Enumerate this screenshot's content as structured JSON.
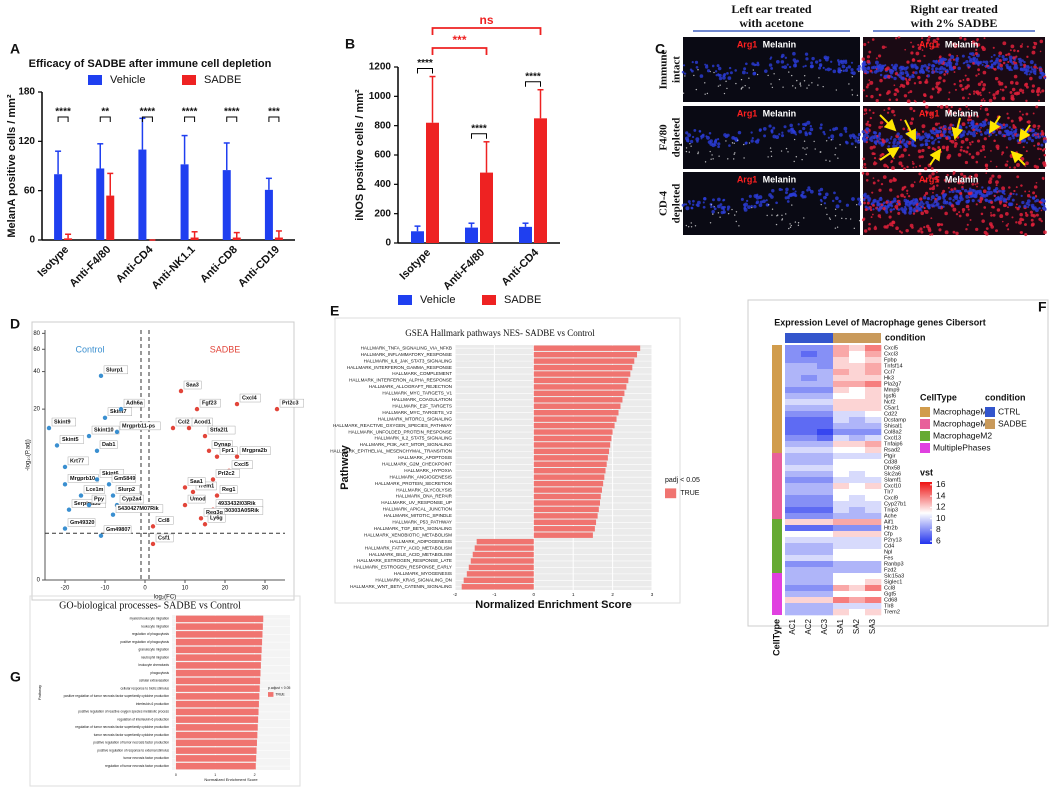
{
  "panel_labels": [
    "A",
    "B",
    "C",
    "D",
    "E",
    "F",
    "G"
  ],
  "micrograph": {
    "columns": [
      [
        "Left ear treated",
        "with acetone"
      ],
      [
        "Right ear treated",
        "with 2% SADBE"
      ]
    ],
    "rows": [
      [
        "Immune",
        "intact"
      ],
      [
        "F4/80",
        "depleted"
      ],
      [
        "CD-4",
        "depleted"
      ]
    ],
    "stains": [
      "Arg1",
      "Melanin"
    ]
  },
  "chart_data": [
    {
      "type": "bar",
      "title": "Efficacy of SADBE after immune cell depletion",
      "y_label": "MelanA positive cells / mm²",
      "categories": [
        "Isotype",
        "Anti-F4/80",
        "Anti-CD4",
        "Anti-NK1.1",
        "Anti-CD8",
        "Anti-CD19"
      ],
      "series": [
        {
          "name": "Vehicle",
          "color": "#1f3ff0",
          "values": [
            80,
            87,
            110,
            92,
            85,
            61
          ],
          "errors": [
            28,
            30,
            38,
            35,
            33,
            14
          ]
        },
        {
          "name": "SADBE",
          "color": "#ee2222",
          "values": [
            2,
            54,
            0,
            3,
            3,
            3
          ],
          "errors": [
            5,
            27,
            0,
            7,
            6,
            8
          ]
        }
      ],
      "ylim": [
        0,
        180
      ],
      "yticks": [
        0,
        60,
        120,
        180
      ],
      "significance": [
        "****",
        "**",
        "****",
        "****",
        "****",
        "***"
      ]
    },
    {
      "type": "bar",
      "y_label": "iNOS positive cells / mm²",
      "categories": [
        "Isotype",
        "Anti-F4/80",
        "Anti-CD4"
      ],
      "series": [
        {
          "name": "Vehicle",
          "color": "#1f3ff0",
          "values": [
            80,
            105,
            110
          ],
          "errors": [
            35,
            30,
            25
          ]
        },
        {
          "name": "SADBE",
          "color": "#ee2222",
          "values": [
            820,
            480,
            850
          ],
          "errors": [
            315,
            210,
            195
          ]
        }
      ],
      "ylim": [
        0,
        1200
      ],
      "yticks": [
        0,
        200,
        400,
        600,
        800,
        1000,
        1200
      ],
      "significance": [
        "****",
        "****",
        "****"
      ],
      "comparisons": [
        {
          "label": "***",
          "pair": [
            "Isotype",
            "Anti-F4/80"
          ]
        },
        {
          "label": "ns",
          "pair": [
            "Isotype",
            "Anti-CD4"
          ]
        }
      ],
      "comparison_color": "#ee2222"
    },
    {
      "type": "scatter",
      "x_label": "log₂(FC)",
      "y_label": "-log₁₀(P.adj)",
      "xlim": [
        -25,
        35
      ],
      "xticks": [
        -20,
        -10,
        0,
        10,
        20,
        30
      ],
      "ylim": [
        0,
        85
      ],
      "yticks": [
        0,
        20,
        40,
        60,
        80
      ],
      "yscale": "log1p",
      "thresholds": {
        "x": [
          -1,
          1
        ],
        "y": 1.3
      },
      "series": [
        {
          "name": "Control",
          "color": "#3a8fd0",
          "labels": [
            "Slurp1",
            "Skint9",
            "Skint5",
            "Skint10",
            "Skint7",
            "Krt77",
            "Mrgprb10",
            "Lce1m",
            "Serpina3b",
            "Gm49320",
            "Adh6a",
            "Mrgprb11-ps",
            "Dab1",
            "Skint6",
            "Gm5849",
            "Slurp2",
            "Ppy",
            "Cyp2a4",
            "5430427M07Rik",
            "Gm49807"
          ],
          "x": [
            -11,
            -24,
            -22,
            -14,
            -10,
            -20,
            -20,
            -16,
            -19,
            -20,
            -6,
            -7,
            -12,
            -12,
            -9,
            -8,
            -14,
            -7,
            -8,
            -11
          ],
          "values": [
            37,
            14,
            10,
            12,
            17,
            6.5,
            4.5,
            3.5,
            2.5,
            1.5,
            20,
            13,
            9,
            5,
            4.5,
            3.5,
            2.8,
            2.8,
            2.2,
            1.2
          ]
        },
        {
          "name": "SADBE",
          "color": "#e2453a",
          "labels": [
            "Saa3",
            "Fgf23",
            "Cxcl4",
            "Prl2c3",
            "Ccl2",
            "Acod1",
            "Stfa2l1",
            "Dynap",
            "Fpr1",
            "Mrgpra2b",
            "Cxcl5",
            "Prl2c2",
            "Trem1",
            "Saa1",
            "Reg1",
            "Umod",
            "4933432I03Rik",
            "B230303A05Rik",
            "Reg3g",
            "Ly6g",
            "Ccl8",
            "Csf1"
          ],
          "x": [
            9,
            13,
            23,
            33,
            7,
            11,
            15,
            16,
            18,
            23,
            21,
            17,
            12,
            10,
            18,
            10,
            17,
            17,
            14,
            15,
            2,
            2
          ],
          "values": [
            28,
            20,
            22,
            20,
            14,
            14,
            12,
            9,
            8,
            8,
            6,
            5,
            3.8,
            4.2,
            3.5,
            2.8,
            2.5,
            2.1,
            2.0,
            1.7,
            1.6,
            0.9
          ]
        }
      ]
    },
    {
      "type": "hbar",
      "title": "GSEA Hallmark pathways NES- SADBE vs Control",
      "x_label": "Normalized Enrichment Score",
      "y_label": "Pathway",
      "categories": [
        "HALLMARK_TNFA_SIGNALING_VIA_NFKB",
        "HALLMARK_INFLAMMATORY_RESPONSE",
        "HALLMARK_IL6_JAK_STAT3_SIGNALING",
        "HALLMARK_INTERFERON_GAMMA_RESPONSE",
        "HALLMARK_COMPLEMENT",
        "HALLMARK_INTERFERON_ALPHA_RESPONSE",
        "HALLMARK_ALLOGRAFT_REJECTION",
        "HALLMARK_MYC_TARGETS_V1",
        "HALLMARK_COAGULATION",
        "HALLMARK_E2F_TARGETS",
        "HALLMARK_MYC_TARGETS_V2",
        "HALLMARK_MTORC1_SIGNALING",
        "HALLMARK_REACTIVE_OXYGEN_SPECIES_PATHWAY",
        "HALLMARK_UNFOLDED_PROTEIN_RESPONSE",
        "HALLMARK_IL2_STAT5_SIGNALING",
        "HALLMARK_PI3K_AKT_MTOR_SIGNALING",
        "HALLMARK_EPITHELIAL_MESENCHYMAL_TRANSITION",
        "HALLMARK_APOPTOSIS",
        "HALLMARK_G2M_CHECKPOINT",
        "HALLMARK_HYPOXIA",
        "HALLMARK_ANGIOGENESIS",
        "HALLMARK_PROTEIN_SECRETION",
        "HALLMARK_GLYCOLYSIS",
        "HALLMARK_DNA_REPAIR",
        "HALLMARK_UV_RESPONSE_UP",
        "HALLMARK_APICAL_JUNCTION",
        "HALLMARK_MITOTIC_SPINDLE",
        "HALLMARK_P53_PATHWAY",
        "HALLMARK_TGF_BETA_SIGNALING",
        "HALLMARK_XENOBIOTIC_METABOLISM",
        "HALLMARK_ADIPOGENESIS",
        "HALLMARK_FATTY_ACID_METABOLISM",
        "HALLMARK_BILE_ACID_METABOLISM",
        "HALLMARK_ESTROGEN_RESPONSE_LATE",
        "HALLMARK_ESTROGEN_RESPONSE_EARLY",
        "HALLMARK_MYOGENESIS",
        "HALLMARK_KRAS_SIGNALING_DN",
        "HALLMARK_WNT_BETA_CATENIN_SIGNALING"
      ],
      "values": [
        2.7,
        2.62,
        2.55,
        2.5,
        2.45,
        2.4,
        2.35,
        2.3,
        2.25,
        2.2,
        2.15,
        2.1,
        2.05,
        2.0,
        1.97,
        1.94,
        1.91,
        1.88,
        1.85,
        1.82,
        1.79,
        1.76,
        1.73,
        1.7,
        1.68,
        1.65,
        1.62,
        1.58,
        1.55,
        1.5,
        -1.45,
        -1.5,
        -1.55,
        -1.6,
        -1.65,
        -1.7,
        -1.78,
        -1.83
      ],
      "color": "#f07470",
      "xlim": [
        -2,
        3
      ],
      "xticks": [
        -2,
        -1,
        0,
        1,
        2,
        3
      ],
      "legend_title": "padj < 0.05",
      "legend_entry": "TRUE",
      "grid": true,
      "panel_background": "#ebebeb"
    },
    {
      "type": "heatmap",
      "title": "Expression Level of Macrophage genes Cibersort",
      "column_annotation_title": "condition",
      "row_annotation_title": "CellType",
      "conditions": [
        {
          "name": "CTRL",
          "color": "#3355cc",
          "samples": [
            "AC1",
            "AC2",
            "AC3"
          ]
        },
        {
          "name": "SADBE",
          "color": "#c99a5b",
          "samples": [
            "SA1",
            "SA2",
            "SA3"
          ]
        }
      ],
      "groups": [
        {
          "name": "MacrophageM0",
          "color": "#d19c4c",
          "genes": [
            "Cxcl5",
            "Cxcl3",
            "Fpbp",
            "Tnfsf14",
            "Ccl7",
            "Hk3",
            "Pla2g7",
            "Mmp9",
            "Igsf6",
            "Ncf2",
            "C5ar1",
            "Cd22",
            "Dcstamp",
            "Shisal1",
            "Col8a2",
            "Cxcl13",
            "Tnfaip6",
            "Rsad2"
          ],
          "values": [
            [
              8,
              8,
              8,
              13,
              12,
              14
            ],
            [
              8,
              7,
              8,
              13,
              11,
              13
            ],
            [
              8,
              8,
              8,
              12,
              11,
              12
            ],
            [
              9,
              9,
              8,
              12,
              12,
              13
            ],
            [
              9,
              9,
              9,
              13,
              12,
              13
            ],
            [
              9,
              8,
              9,
              12,
              12,
              12
            ],
            [
              9,
              9,
              9,
              13,
              13,
              14
            ],
            [
              8,
              8,
              8,
              12,
              11,
              12
            ],
            [
              9,
              9,
              9,
              11,
              11,
              12
            ],
            [
              10,
              10,
              10,
              12,
              12,
              12
            ],
            [
              9,
              9,
              9,
              12,
              12,
              12
            ],
            [
              8,
              8,
              8,
              10,
              10,
              11
            ],
            [
              7,
              7,
              7,
              10,
              9,
              10
            ],
            [
              7,
              7,
              7,
              9,
              9,
              9
            ],
            [
              7,
              7,
              6,
              8,
              8,
              8
            ],
            [
              8,
              8,
              7,
              10,
              9,
              10
            ],
            [
              9,
              9,
              9,
              12,
              12,
              13
            ],
            [
              10,
              10,
              10,
              11,
              11,
              12
            ]
          ]
        },
        {
          "name": "MacrophageM1",
          "color": "#e8609a",
          "genes": [
            "Ptgir",
            "Cd38",
            "Dhx58",
            "Slc2a6",
            "Slamf1",
            "Cxcl10",
            "Tlr7",
            "Cxcl9",
            "Cyp27b1",
            "Tnip3",
            "Ache"
          ],
          "values": [
            [
              9,
              9,
              9,
              10,
              10,
              10
            ],
            [
              9,
              9,
              9,
              11,
              11,
              11
            ],
            [
              10,
              10,
              10,
              11,
              11,
              11
            ],
            [
              9,
              9,
              9,
              11,
              10,
              11
            ],
            [
              8,
              8,
              8,
              10,
              10,
              10
            ],
            [
              9,
              9,
              9,
              12,
              11,
              12
            ],
            [
              9,
              9,
              9,
              11,
              11,
              11
            ],
            [
              8,
              8,
              8,
              11,
              10,
              11
            ],
            [
              8,
              8,
              8,
              10,
              10,
              10
            ],
            [
              7,
              7,
              7,
              10,
              9,
              10
            ],
            [
              8,
              8,
              8,
              9,
              9,
              9
            ]
          ]
        },
        {
          "name": "MacrophageM2",
          "color": "#66aa33",
          "genes": [
            "Aif1",
            "Htr2b",
            "Cfp",
            "P2ry13",
            "Cd4",
            "Npl",
            "Fes",
            "Ranbp3",
            "Fzd2"
          ],
          "values": [
            [
              12,
              12,
              12,
              13,
              13,
              13
            ],
            [
              7,
              7,
              7,
              8,
              8,
              8
            ],
            [
              11,
              11,
              11,
              12,
              12,
              12
            ],
            [
              10,
              10,
              10,
              10,
              10,
              10
            ],
            [
              9,
              9,
              9,
              10,
              10,
              10
            ],
            [
              9,
              9,
              9,
              11,
              11,
              11
            ],
            [
              10,
              10,
              10,
              11,
              11,
              11
            ],
            [
              8,
              8,
              8,
              9,
              9,
              9
            ],
            [
              9,
              9,
              9,
              9,
              9,
              9
            ]
          ]
        },
        {
          "name": "MultiplePhases",
          "color": "#e040e0",
          "genes": [
            "Slc15a3",
            "Siglec1",
            "Ccl8",
            "Ggt5",
            "Cd68",
            "Tlr8",
            "Trem2"
          ],
          "values": [
            [
              9,
              9,
              9,
              11,
              11,
              11
            ],
            [
              9,
              9,
              9,
              11,
              11,
              12
            ],
            [
              8,
              8,
              8,
              13,
              12,
              14
            ],
            [
              9,
              9,
              9,
              11,
              11,
              11
            ],
            [
              12,
              12,
              12,
              14,
              13,
              14
            ],
            [
              9,
              9,
              9,
              10,
              10,
              10
            ],
            [
              9,
              9,
              9,
              12,
              11,
              12
            ]
          ]
        }
      ],
      "colorbar": {
        "title": "vst",
        "lim": [
          5.5,
          16.5
        ],
        "ticks": [
          6,
          8,
          10,
          12,
          14,
          16
        ],
        "colors": [
          "#2233ee",
          "#ffffff",
          "#ee1111"
        ]
      }
    },
    {
      "type": "hbar",
      "title": "GO-biological processes- SADBE vs Control",
      "x_label": "Normalized Enrichment Score",
      "y_label": "Pathway",
      "categories": [
        "myeloid leukocyte migration",
        "leukocyte migration",
        "regulation of phagocytosis",
        "positive regulation of phagocytosis",
        "granulocyte migration",
        "neutrophil migration",
        "leukocyte chemotaxis",
        "phagocytosis",
        "cellular extravasation",
        "cellular response to biotic stimulus",
        "positive regulation of tumor necrosis factor superfamily cytokine production",
        "interleukin-6 production",
        "positive regulation of reactive oxygen species metabolic process",
        "regulation of interleukin-6 production",
        "regulation of tumor necrosis factor superfamily cytokine production",
        "tumor necrosis factor superfamily cytokine production",
        "positive regulation of tumor necrosis factor production",
        "positive regulation of response to external stimulus",
        "tumor necrosis factor production",
        "regulation of tumor necrosis factor production"
      ],
      "values": [
        2.22,
        2.21,
        2.2,
        2.19,
        2.18,
        2.17,
        2.16,
        2.15,
        2.14,
        2.13,
        2.12,
        2.11,
        2.1,
        2.09,
        2.08,
        2.07,
        2.06,
        2.05,
        2.04,
        2.03
      ],
      "color": "#f07470",
      "xlim": [
        -0.1,
        2.9
      ],
      "xticks": [
        0,
        1,
        2
      ],
      "legend_title": "p.adjust < 0.05",
      "legend_entry": "TRUE",
      "grid": true,
      "panel_background": "#f4f4f4"
    }
  ]
}
